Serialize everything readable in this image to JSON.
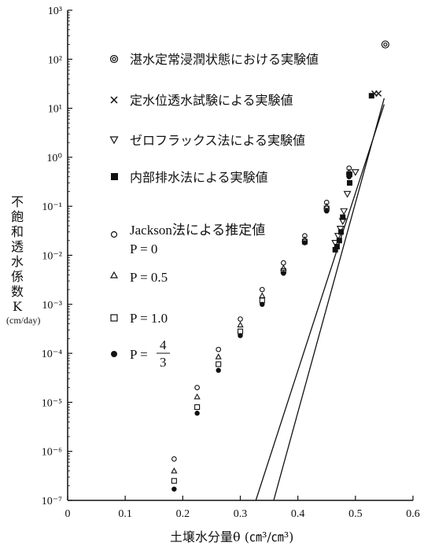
{
  "chart_data": {
    "type": "scatter",
    "x_axis": {
      "label": "土壌水分量θ (㎝³/㎝³)",
      "min": 0,
      "max": 0.6,
      "ticks": [
        "0",
        "0.1",
        "0.2",
        "0.3",
        "0.4",
        "0.5",
        "0.6"
      ]
    },
    "y_axis": {
      "label_lines": [
        "不",
        "飽",
        "和",
        "透",
        "水",
        "係",
        "数",
        "K"
      ],
      "unit": "(cm/day)",
      "scale": "log",
      "min_exp": -7,
      "max_exp": 3,
      "ticks": [
        "10⁻⁷",
        "10⁻⁶",
        "10⁻⁵",
        "10⁻⁴",
        "10⁻³",
        "10⁻²",
        "10⁻¹",
        "10⁰",
        "10¹",
        "10²",
        "10³"
      ]
    },
    "legend": {
      "flooded": "湛水定常浸潤状態における実験値",
      "constant_head": "定水位透水試験による実験値",
      "zero_flux": "ゼロフラックス法による実験値",
      "internal_drainage": "内部排水法による実験値",
      "jackson_title": "Jackson法による推定値",
      "p0": "P = 0",
      "p05": "P = 0.5",
      "p10": "P = 1.0",
      "p43_prefix": "P =",
      "p43_num": "4",
      "p43_den": "3"
    },
    "series": [
      {
        "key": "flooded",
        "marker": "double-circle",
        "points": [
          [
            0.552,
            200
          ]
        ]
      },
      {
        "key": "constant_head",
        "marker": "x",
        "points": [
          [
            0.533,
            20
          ],
          [
            0.54,
            20
          ]
        ]
      },
      {
        "key": "zero_flux",
        "marker": "triangle-down",
        "points": [
          [
            0.465,
            0.018
          ],
          [
            0.47,
            0.025
          ],
          [
            0.474,
            0.035
          ],
          [
            0.478,
            0.05
          ],
          [
            0.48,
            0.08
          ],
          [
            0.486,
            0.18
          ],
          [
            0.5,
            0.5
          ]
        ]
      },
      {
        "key": "internal_drainage",
        "marker": "filled-square",
        "points": [
          [
            0.465,
            0.013
          ],
          [
            0.468,
            0.015
          ],
          [
            0.472,
            0.02
          ],
          [
            0.475,
            0.03
          ],
          [
            0.478,
            0.06
          ],
          [
            0.49,
            0.3
          ],
          [
            0.49,
            0.45
          ],
          [
            0.528,
            18
          ]
        ]
      },
      {
        "key": "p0",
        "marker": "open-circle",
        "points": [
          [
            0.185,
            7e-07
          ],
          [
            0.225,
            2e-05
          ],
          [
            0.262,
            0.00012
          ],
          [
            0.3,
            0.0005
          ],
          [
            0.338,
            0.002
          ],
          [
            0.375,
            0.007
          ],
          [
            0.412,
            0.025
          ],
          [
            0.45,
            0.12
          ],
          [
            0.489,
            0.6
          ]
        ]
      },
      {
        "key": "p05",
        "marker": "open-triangle",
        "points": [
          [
            0.185,
            4e-07
          ],
          [
            0.225,
            1.3e-05
          ],
          [
            0.262,
            8.5e-05
          ],
          [
            0.3,
            0.00038
          ],
          [
            0.338,
            0.0015
          ],
          [
            0.375,
            0.0055
          ],
          [
            0.412,
            0.021
          ],
          [
            0.45,
            0.1
          ],
          [
            0.489,
            0.5
          ]
        ]
      },
      {
        "key": "p10",
        "marker": "open-square",
        "points": [
          [
            0.185,
            2.5e-07
          ],
          [
            0.225,
            8e-06
          ],
          [
            0.262,
            6e-05
          ],
          [
            0.3,
            0.00028
          ],
          [
            0.338,
            0.0012
          ],
          [
            0.375,
            0.0048
          ],
          [
            0.412,
            0.019
          ],
          [
            0.45,
            0.09
          ],
          [
            0.489,
            0.45
          ]
        ]
      },
      {
        "key": "p43",
        "marker": "filled-circle",
        "points": [
          [
            0.185,
            1.7e-07
          ],
          [
            0.225,
            6e-06
          ],
          [
            0.262,
            4.5e-05
          ],
          [
            0.3,
            0.00023
          ],
          [
            0.338,
            0.001
          ],
          [
            0.375,
            0.0043
          ],
          [
            0.412,
            0.018
          ],
          [
            0.45,
            0.08
          ],
          [
            0.489,
            0.4
          ]
        ]
      }
    ],
    "lines": [
      {
        "x": [
          0.327,
          0.55
        ],
        "y": [
          1e-07,
          12
        ]
      },
      {
        "x": [
          0.358,
          0.55
        ],
        "y": [
          1e-07,
          16
        ]
      }
    ]
  }
}
